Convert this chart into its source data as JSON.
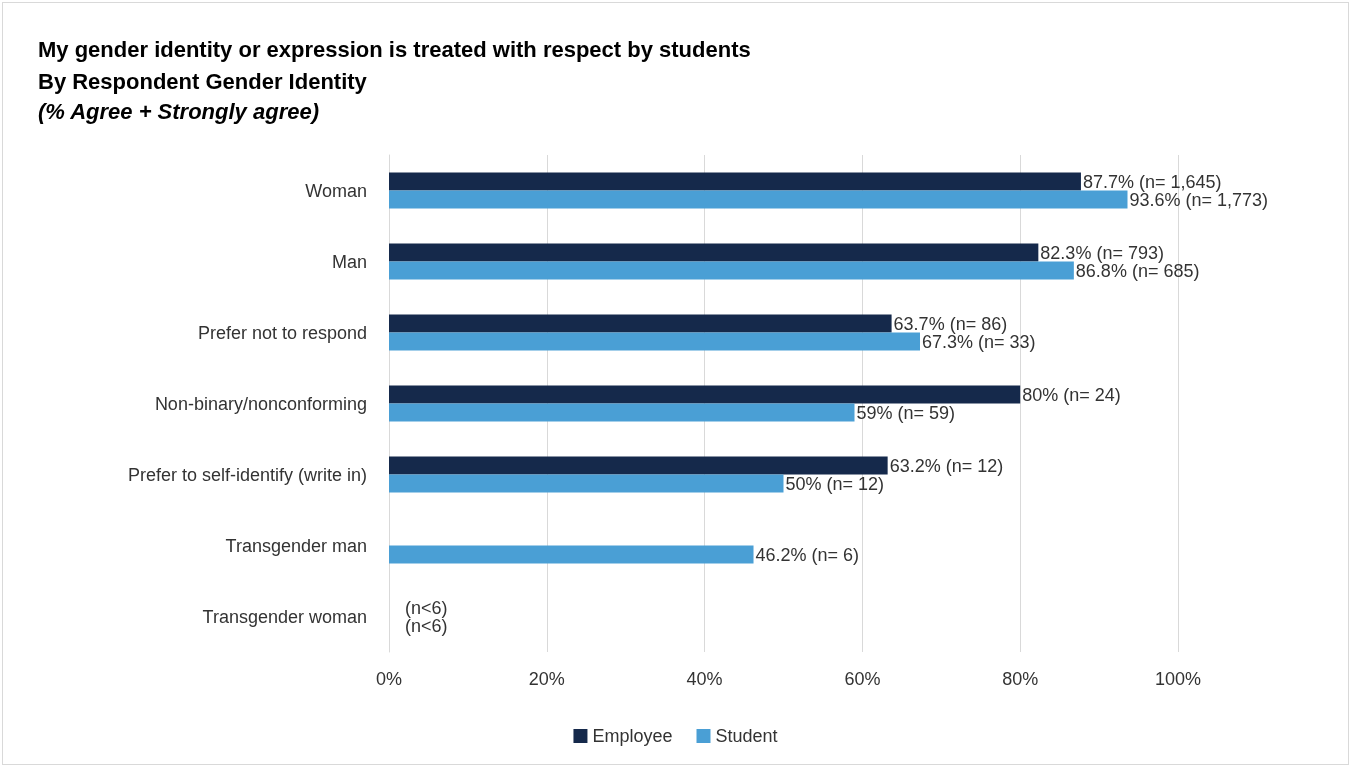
{
  "chart_data": {
    "type": "bar",
    "orientation": "horizontal",
    "title": "My gender identity or expression is treated with respect by students",
    "subtitle": "By Respondent Gender Identity\n(% Agree + Strongly agree)",
    "categories": [
      "Woman",
      "Man",
      "Prefer not to respond",
      "Non-binary/nonconforming",
      "Prefer to self-identify (write in)",
      "Transgender man",
      "Transgender woman"
    ],
    "series": [
      {
        "name": "Employee",
        "color": "#15294b",
        "values": [
          87.7,
          82.3,
          63.7,
          80,
          63.2,
          null,
          null
        ],
        "value_labels": [
          "87.7% (n= 1,645)",
          "82.3% (n= 793)",
          "63.7% (n= 86)",
          "80% (n= 24)",
          "63.2% (n= 12)",
          null,
          "(n<6)"
        ]
      },
      {
        "name": "Student",
        "color": "#4a9fd5",
        "values": [
          93.6,
          86.8,
          67.3,
          59,
          50,
          46.2,
          null
        ],
        "value_labels": [
          "93.6% (n= 1,773)",
          "86.8% (n= 685)",
          "67.3% (n= 33)",
          "59% (n= 59)",
          "50% (n= 12)",
          "46.2% (n= 6)",
          "(n<6)"
        ]
      }
    ],
    "xlim": [
      0,
      100
    ],
    "xticks": [
      {
        "value": 0,
        "label": "0%"
      },
      {
        "value": 20,
        "label": "20%"
      },
      {
        "value": 40,
        "label": "40%"
      },
      {
        "value": 60,
        "label": "60%"
      },
      {
        "value": 80,
        "label": "80%"
      },
      {
        "value": 100,
        "label": "100%"
      }
    ],
    "grid": "x",
    "legend": "bottom"
  }
}
